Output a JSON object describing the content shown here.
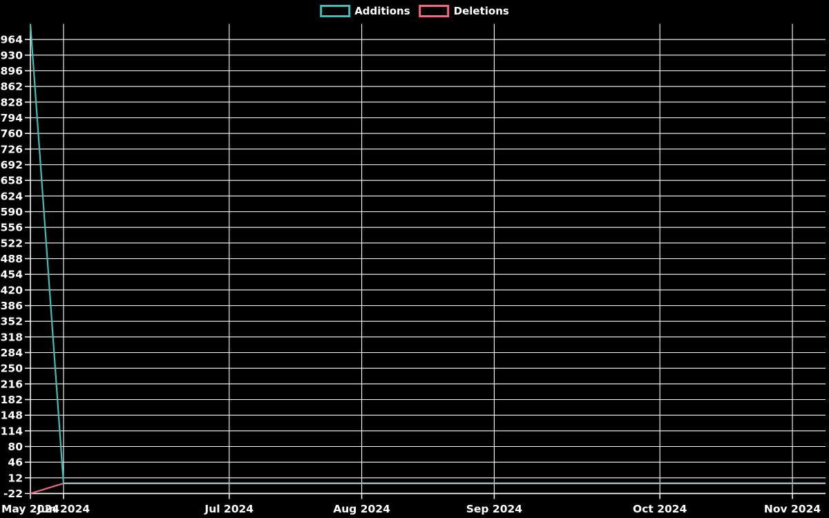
{
  "legend": {
    "additions_label": "Additions",
    "deletions_label": "Deletions"
  },
  "chart_data": {
    "type": "line",
    "title": "",
    "background": "#000000",
    "grid_color": "#ffffff",
    "text_color": "#ffffff",
    "overlap_color": "#9fb5bf",
    "legend_position": "top-center",
    "grid": true,
    "legend": [
      {
        "name": "Additions",
        "color": "#3fbfb8"
      },
      {
        "name": "Deletions",
        "color": "#f4697f"
      }
    ],
    "x_axis": {
      "unit": "week-index",
      "range_weeks": [
        0,
        24
      ],
      "ticks": [
        {
          "label": "May 2024",
          "week": 0
        },
        {
          "label": "Jun 2024",
          "week": 1
        },
        {
          "label": "Jul 2024",
          "week": 6
        },
        {
          "label": "Aug 2024",
          "week": 10
        },
        {
          "label": "Sep 2024",
          "week": 14
        },
        {
          "label": "Oct 2024",
          "week": 19
        },
        {
          "label": "Nov 2024",
          "week": 23
        }
      ]
    },
    "y_axis": {
      "range": [
        -22,
        998
      ],
      "tick_step": 34,
      "ticks": [
        964,
        930,
        896,
        862,
        828,
        794,
        760,
        726,
        692,
        658,
        624,
        590,
        556,
        522,
        488,
        454,
        420,
        386,
        352,
        318,
        284,
        250,
        216,
        182,
        148,
        114,
        80,
        46,
        12,
        -22
      ]
    },
    "series": [
      {
        "name": "Additions",
        "color": "#3fbfb8",
        "values": [
          998,
          0,
          0,
          0,
          0,
          0,
          0,
          0,
          0,
          0,
          0,
          0,
          0,
          0,
          0,
          0,
          0,
          0,
          0,
          0,
          0,
          0,
          0,
          0,
          0
        ]
      },
      {
        "name": "Deletions",
        "color": "#f4697f",
        "values": [
          -22,
          0,
          0,
          0,
          0,
          0,
          0,
          0,
          0,
          0,
          0,
          0,
          0,
          0,
          0,
          0,
          0,
          0,
          0,
          0,
          0,
          0,
          0,
          0,
          0
        ]
      }
    ]
  }
}
